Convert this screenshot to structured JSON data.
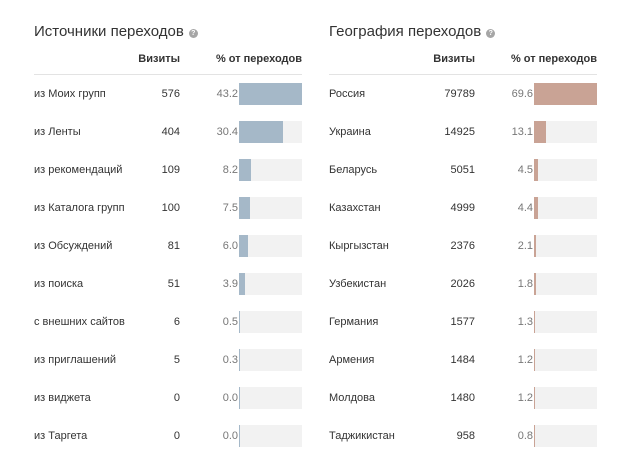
{
  "sources": {
    "title": "Источники переходов",
    "help_icon": "help-icon",
    "col_visits": "Визиты",
    "col_percent": "% от переходов",
    "bar_color": "#a5b8c8",
    "rows": [
      {
        "name": "из Моих групп",
        "visits": "576",
        "percent": "43.2",
        "fraction": 1.0
      },
      {
        "name": "из Ленты",
        "visits": "404",
        "percent": "30.4",
        "fraction": 0.7
      },
      {
        "name": "из рекомендаций",
        "visits": "109",
        "percent": "8.2",
        "fraction": 0.19
      },
      {
        "name": "из Каталога групп",
        "visits": "100",
        "percent": "7.5",
        "fraction": 0.17
      },
      {
        "name": "из Обсуждений",
        "visits": "81",
        "percent": "6.0",
        "fraction": 0.14
      },
      {
        "name": "из поиска",
        "visits": "51",
        "percent": "3.9",
        "fraction": 0.09
      },
      {
        "name": "с внешних сайтов",
        "visits": "6",
        "percent": "0.5",
        "fraction": 0.012
      },
      {
        "name": "из приглашений",
        "visits": "5",
        "percent": "0.3",
        "fraction": 0.007
      },
      {
        "name": "из виджета",
        "visits": "0",
        "percent": "0.0",
        "fraction": 0
      },
      {
        "name": "из Таргета",
        "visits": "0",
        "percent": "0.0",
        "fraction": 0
      }
    ]
  },
  "geography": {
    "title": "География переходов",
    "help_icon": "help-icon",
    "col_visits": "Визиты",
    "col_percent": "% от переходов",
    "bar_color": "#c9a395",
    "rows": [
      {
        "name": "Россия",
        "visits": "79789",
        "percent": "69.6",
        "fraction": 1.0
      },
      {
        "name": "Украина",
        "visits": "14925",
        "percent": "13.1",
        "fraction": 0.188
      },
      {
        "name": "Беларусь",
        "visits": "5051",
        "percent": "4.5",
        "fraction": 0.065
      },
      {
        "name": "Казахстан",
        "visits": "4999",
        "percent": "4.4",
        "fraction": 0.063
      },
      {
        "name": "Кыргызстан",
        "visits": "2376",
        "percent": "2.1",
        "fraction": 0.03
      },
      {
        "name": "Узбекистан",
        "visits": "2026",
        "percent": "1.8",
        "fraction": 0.026
      },
      {
        "name": "Германия",
        "visits": "1577",
        "percent": "1.3",
        "fraction": 0.019
      },
      {
        "name": "Армения",
        "visits": "1484",
        "percent": "1.2",
        "fraction": 0.017
      },
      {
        "name": "Молдова",
        "visits": "1480",
        "percent": "1.2",
        "fraction": 0.017
      },
      {
        "name": "Таджикистан",
        "visits": "958",
        "percent": "0.8",
        "fraction": 0.011
      }
    ]
  }
}
